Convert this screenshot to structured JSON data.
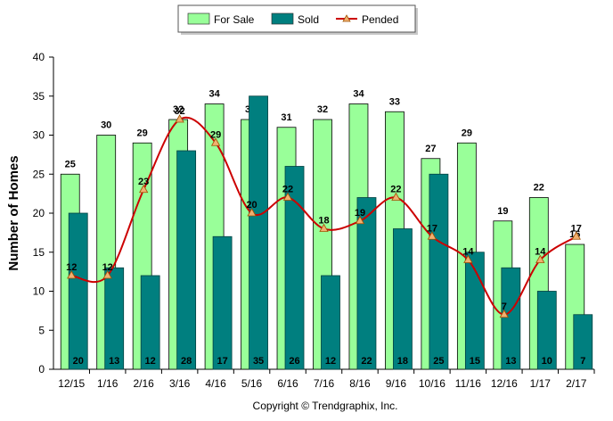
{
  "chart_data": {
    "type": "bar",
    "categories": [
      "12/15",
      "1/16",
      "2/16",
      "3/16",
      "4/16",
      "5/16",
      "6/16",
      "7/16",
      "8/16",
      "9/16",
      "10/16",
      "11/16",
      "12/16",
      "1/17",
      "2/17"
    ],
    "series": [
      {
        "name": "For Sale",
        "type": "bar",
        "color": "#99ff99",
        "values": [
          25,
          30,
          29,
          32,
          34,
          32,
          31,
          32,
          34,
          33,
          27,
          29,
          19,
          22,
          16
        ]
      },
      {
        "name": "Sold",
        "type": "bar",
        "color": "#007f7f",
        "values": [
          20,
          13,
          12,
          28,
          17,
          35,
          26,
          12,
          22,
          18,
          25,
          15,
          13,
          10,
          7
        ]
      },
      {
        "name": "Pended",
        "type": "line",
        "color": "#cc0000",
        "values": [
          12,
          12,
          23,
          32,
          29,
          20,
          22,
          18,
          19,
          22,
          17,
          14,
          7,
          14,
          17
        ]
      }
    ],
    "ylabel": "Number of Homes",
    "xlabel": "",
    "ylim": [
      0,
      40
    ],
    "yticks": [
      0,
      5,
      10,
      15,
      20,
      25,
      30,
      35,
      40
    ],
    "grid": false,
    "legend_position": "top"
  },
  "copyright": "Copyright © Trendgraphix, Inc."
}
